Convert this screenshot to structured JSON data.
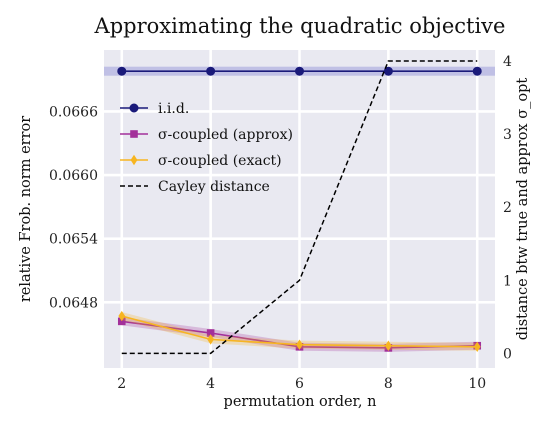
{
  "chart_data": {
    "type": "line",
    "title": "Approximating the quadratic objective",
    "xlabel": "permutation order, n",
    "ylabel": "relative Frob. norm error",
    "ylabel_right": "distance btw true and approx σ_opt",
    "x": [
      2,
      4,
      6,
      8,
      10
    ],
    "xticks": [
      "2",
      "4",
      "6",
      "8",
      "10"
    ],
    "xlim": [
      1.6,
      10.4
    ],
    "ylim": [
      0.06418,
      0.06718
    ],
    "yticks": [
      "0.0648",
      "0.0654",
      "0.0660",
      "0.0666"
    ],
    "ytick_values": [
      0.0648,
      0.0654,
      0.066,
      0.0666
    ],
    "ylim_right": [
      -0.2,
      4.15
    ],
    "yticks_right": [
      "0",
      "1",
      "2",
      "3",
      "4"
    ],
    "ytick_values_right": [
      0,
      1,
      2,
      3,
      4
    ],
    "grid": true,
    "legend_position": "upper-left",
    "series": [
      {
        "name": "i.i.d.",
        "axis": "left",
        "color": "#1a1a7a",
        "marker": "circle",
        "values": [
          0.06698,
          0.06698,
          0.06698,
          0.06698,
          0.06698
        ]
      },
      {
        "name": "σ-coupled (approx)",
        "axis": "left",
        "color": "#a3309a",
        "marker": "square",
        "values": [
          0.06462,
          0.06451,
          0.06438,
          0.06437,
          0.06439
        ]
      },
      {
        "name": "σ-coupled (exact)",
        "axis": "left",
        "color": "#f7b521",
        "marker": "diamond",
        "values": [
          0.06467,
          0.06445,
          0.0644,
          0.06439,
          0.06438
        ]
      },
      {
        "name": "Cayley distance",
        "axis": "right",
        "color": "#000000",
        "marker": "none",
        "dashed": true,
        "values": [
          0,
          0,
          1,
          4,
          4
        ]
      }
    ]
  },
  "colors": {
    "plot_background": "#e9e9f1",
    "grid": "#ffffff"
  }
}
